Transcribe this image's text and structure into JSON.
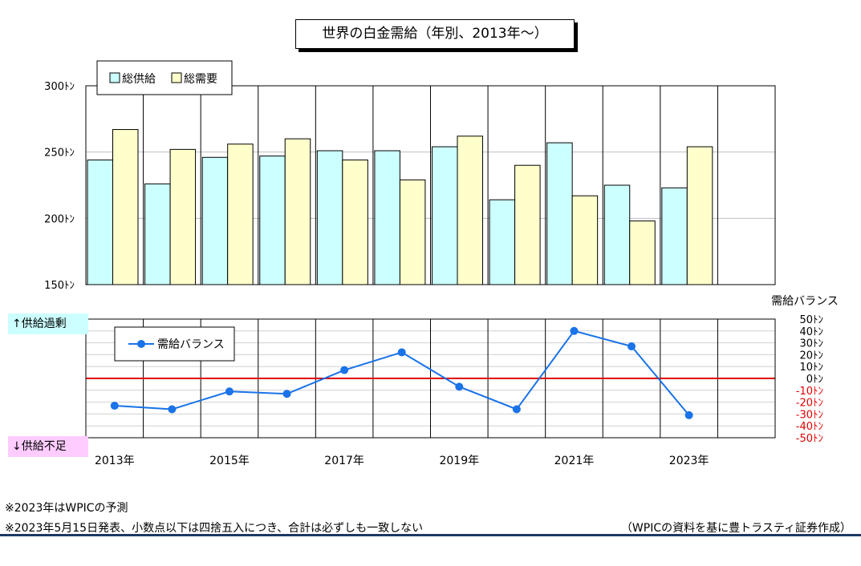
{
  "title": "世界の白金需給（年別、2013年〜）",
  "tags": {
    "surplus": "↑供給過剰",
    "deficit": "↓供給不足"
  },
  "notes": [
    "※2023年はWPICの予測",
    "※2023年5月15日発表、小数点以下は四捨五入につき、合計は必ずしも一致しない"
  ],
  "source": "（WPICの資料を基に豊トラスティ証券作成）",
  "colors": {
    "supply": "#ccffff",
    "demand": "#ffffcc",
    "balance": "#1a73e8",
    "zero_line": "#e00000",
    "negative_tick": "#e00000"
  },
  "chart_data": [
    {
      "type": "bar",
      "categories": [
        "2013年",
        "2014年",
        "2015年",
        "2016年",
        "2017年",
        "2018年",
        "2019年",
        "2020年",
        "2021年",
        "2022年",
        "2023年"
      ],
      "tick_labels_shown": [
        "2013年",
        "2015年",
        "2017年",
        "2019年",
        "2021年",
        "2023年"
      ],
      "series": [
        {
          "name": "総供給",
          "values": [
            244,
            226,
            246,
            247,
            251,
            251,
            254,
            214,
            257,
            225,
            223
          ]
        },
        {
          "name": "総需要",
          "values": [
            267,
            252,
            256,
            260,
            244,
            229,
            262,
            240,
            217,
            198,
            254
          ]
        }
      ],
      "ylim": [
        150,
        300
      ],
      "yticks": [
        "150ﾄﾝ",
        "200ﾄﾝ",
        "250ﾄﾝ",
        "300ﾄﾝ"
      ],
      "ytick_values": [
        150,
        200,
        250,
        300
      ],
      "grid": true,
      "legend": "top-left"
    },
    {
      "type": "line",
      "x": [
        "2013年",
        "2014年",
        "2015年",
        "2016年",
        "2017年",
        "2018年",
        "2019年",
        "2020年",
        "2021年",
        "2022年",
        "2023年"
      ],
      "series": [
        {
          "name": "需給バランス",
          "values": [
            -23,
            -26,
            -11,
            -13,
            7,
            22,
            -7,
            -26,
            40,
            27,
            -31
          ]
        }
      ],
      "ylabel": "需給バランス",
      "ylim": [
        -50,
        50
      ],
      "yticks": [
        "50ﾄﾝ",
        "40ﾄﾝ",
        "30ﾄﾝ",
        "20ﾄﾝ",
        "10ﾄﾝ",
        "0ﾄﾝ",
        "-10ﾄﾝ",
        "-20ﾄﾝ",
        "-30ﾄﾝ",
        "-40ﾄﾝ",
        "-50ﾄﾝ"
      ],
      "ytick_values": [
        50,
        40,
        30,
        20,
        10,
        0,
        -10,
        -20,
        -30,
        -40,
        -50
      ],
      "grid": true,
      "legend": "top-left",
      "axis_side": "right"
    }
  ]
}
